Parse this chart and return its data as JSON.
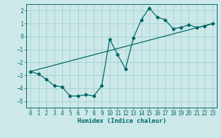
{
  "xlabel": "Humidex (Indice chaleur)",
  "bg_color": "#cce8e8",
  "line_color": "#006666",
  "xlim": [
    -0.5,
    23.5
  ],
  "ylim": [
    -5.5,
    2.5
  ],
  "yticks": [
    -5,
    -4,
    -3,
    -2,
    -1,
    0,
    1,
    2
  ],
  "xticks": [
    0,
    1,
    2,
    3,
    4,
    5,
    6,
    7,
    8,
    9,
    10,
    11,
    12,
    13,
    14,
    15,
    16,
    17,
    18,
    19,
    20,
    21,
    22,
    23
  ],
  "curve1_x": [
    0,
    1,
    2,
    3,
    4,
    5,
    6,
    7,
    8,
    9,
    10,
    11,
    12,
    13,
    14,
    15,
    16,
    17,
    18,
    19,
    20,
    21,
    22,
    23
  ],
  "curve1_y": [
    -2.7,
    -2.9,
    -3.3,
    -3.8,
    -3.9,
    -4.6,
    -4.6,
    -4.5,
    -4.6,
    -3.8,
    -0.2,
    -1.4,
    -2.5,
    -0.1,
    1.3,
    2.2,
    1.5,
    1.3,
    0.6,
    0.7,
    0.9,
    0.7,
    0.8,
    1.0
  ],
  "curve2_x": [
    0,
    23
  ],
  "curve2_y": [
    -2.7,
    1.0
  ],
  "tick_fontsize": 5.5,
  "xlabel_fontsize": 6.5,
  "grid_color": "#99cccc",
  "spine_color": "#006666"
}
